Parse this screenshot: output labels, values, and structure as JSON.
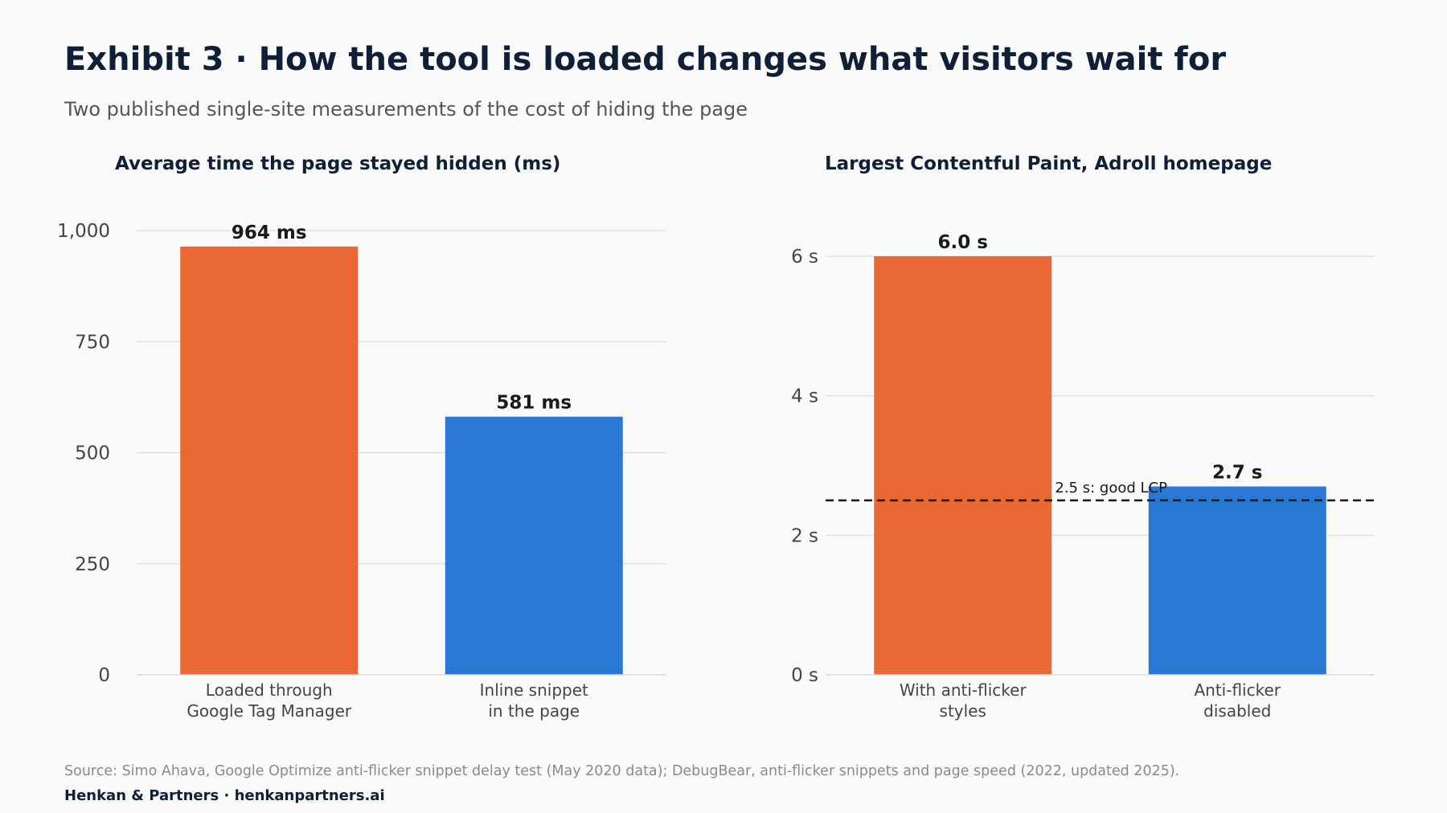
{
  "header": {
    "title": "Exhibit 3 · How the tool is loaded changes what visitors wait for",
    "subtitle": "Two published single-site measurements of the cost of hiding the page"
  },
  "colors": {
    "orange": "#e96834",
    "blue": "#2a78d6",
    "title": "#0f1f38",
    "grid": "#dddddd",
    "tick_text": "#444444"
  },
  "chart_data": [
    {
      "type": "bar",
      "title": "Average time the page stayed hidden (ms)",
      "categories": [
        [
          "Loaded through",
          "Google Tag Manager"
        ],
        [
          "Inline snippet",
          "in the page"
        ]
      ],
      "values": [
        964,
        581
      ],
      "value_labels": [
        "964 ms",
        "581 ms"
      ],
      "bar_colors": [
        "#e96834",
        "#2a78d6"
      ],
      "ylim": [
        0,
        1000
      ],
      "yticks": [
        0,
        250,
        500,
        750,
        1000
      ],
      "ytick_labels": [
        "0",
        "250",
        "500",
        "750",
        "1,000"
      ],
      "grid": true
    },
    {
      "type": "bar",
      "title": "Largest Contentful Paint, Adroll homepage",
      "categories": [
        [
          "With anti-flicker",
          "styles"
        ],
        [
          "Anti-flicker",
          "disabled"
        ]
      ],
      "values": [
        6.0,
        2.7
      ],
      "value_labels": [
        "6.0 s",
        "2.7 s"
      ],
      "bar_colors": [
        "#e96834",
        "#2a78d6"
      ],
      "ylim": [
        0,
        6
      ],
      "yticks": [
        0,
        2,
        4,
        6
      ],
      "ytick_labels": [
        "0 s",
        "2 s",
        "4 s",
        "6 s"
      ],
      "grid": true,
      "reference_line": {
        "value": 2.5,
        "label": "2.5 s: good LCP",
        "style": "dashed"
      }
    }
  ],
  "footer": {
    "source": "Source: Simo Ahava, Google Optimize anti-flicker snippet delay test (May 2020 data); DebugBear, anti-flicker snippets and page speed (2022, updated 2025).",
    "brand": "Henkan & Partners · henkanpartners.ai"
  }
}
